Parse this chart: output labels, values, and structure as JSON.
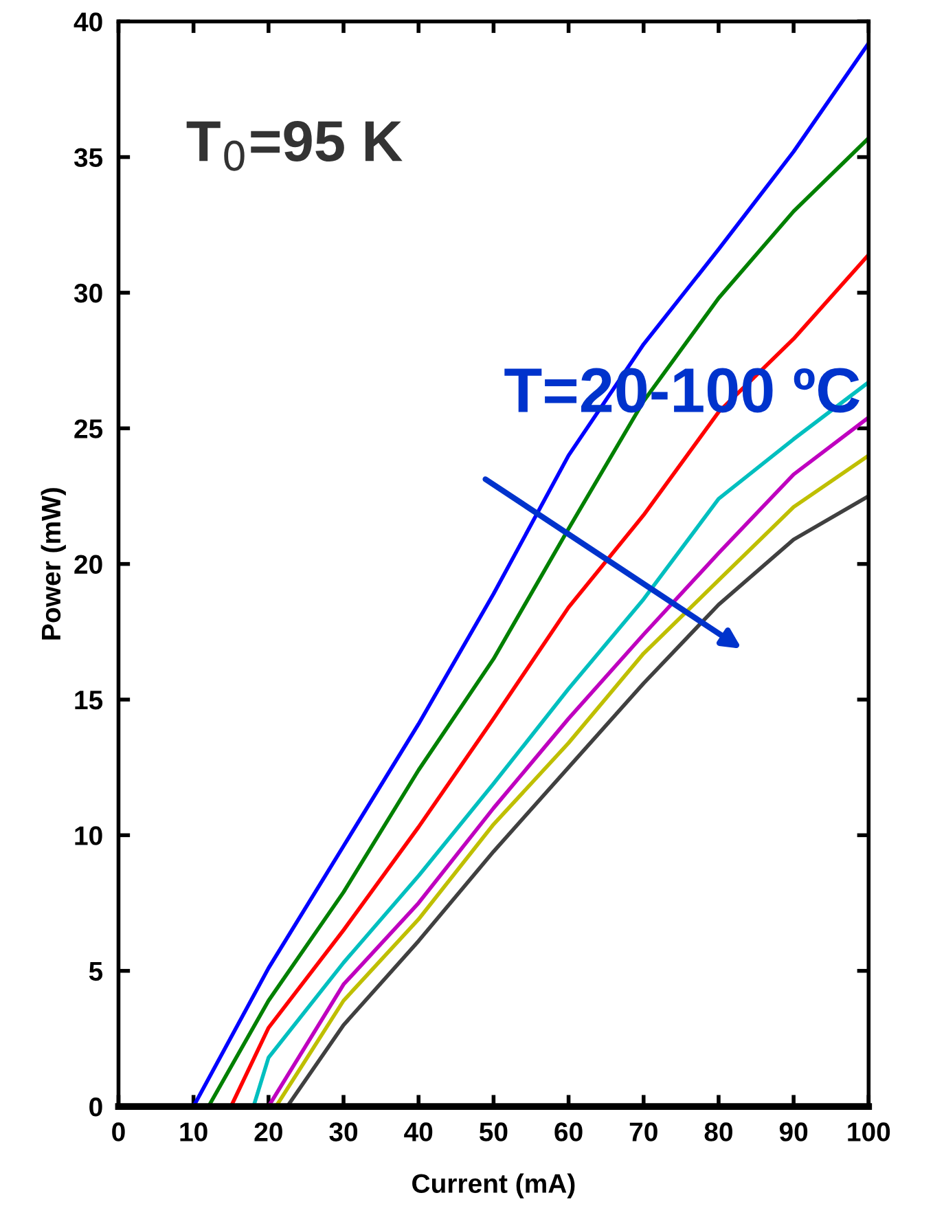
{
  "chart_data": {
    "type": "line",
    "xlabel": "Current (mA)",
    "ylabel": "Power (mW)",
    "annotations": [
      "T$_{0}$=95 K",
      "T=20-100 ºC"
    ],
    "xlim": [
      0,
      100
    ],
    "xticks": [
      0,
      10,
      20,
      30,
      40,
      50,
      60,
      70,
      80,
      90,
      100
    ],
    "ylim": [
      0,
      40
    ],
    "yticks": [
      0,
      5,
      10,
      15,
      20,
      25,
      30,
      35,
      40
    ],
    "grid": false,
    "legend": false,
    "marker": "none",
    "line_style": "solid",
    "series": [
      {
        "color": "#0000ff",
        "x": [
          0,
          10,
          20,
          30,
          40,
          50,
          60,
          70,
          80,
          90,
          100
        ],
        "values": [
          0,
          0,
          5.1,
          9.6,
          14.1,
          18.9,
          24.0,
          28.1,
          31.6,
          35.2,
          39.2
        ]
      },
      {
        "color": "#008000",
        "x": [
          0,
          12,
          20,
          30,
          40,
          50,
          60,
          70,
          80,
          90,
          100
        ],
        "values": [
          0,
          0,
          3.9,
          7.9,
          12.4,
          16.5,
          21.3,
          26.0,
          29.8,
          33.0,
          35.7
        ]
      },
      {
        "color": "#ff0000",
        "x": [
          0,
          15,
          20,
          30,
          40,
          50,
          60,
          70,
          80,
          90,
          100
        ],
        "values": [
          0,
          0,
          2.9,
          6.5,
          10.3,
          14.3,
          18.4,
          21.8,
          25.6,
          28.3,
          31.4
        ]
      },
      {
        "color": "#00bfbf",
        "x": [
          0,
          18,
          20,
          30,
          40,
          50,
          60,
          70,
          80,
          90,
          100
        ],
        "values": [
          0,
          0,
          1.8,
          5.3,
          8.5,
          11.9,
          15.4,
          18.7,
          22.4,
          24.6,
          26.7
        ]
      },
      {
        "color": "#bf00bf",
        "x": [
          0,
          20,
          30,
          40,
          50,
          60,
          70,
          80,
          90,
          100
        ],
        "values": [
          0,
          0,
          4.5,
          7.5,
          11.0,
          14.3,
          17.4,
          20.4,
          23.3,
          25.4
        ]
      },
      {
        "color": "#bfbf00",
        "x": [
          0,
          21,
          30,
          40,
          50,
          60,
          70,
          80,
          90,
          100
        ],
        "values": [
          0,
          0,
          3.9,
          6.9,
          10.4,
          13.4,
          16.7,
          19.4,
          22.1,
          24.0
        ]
      },
      {
        "color": "#404040",
        "x": [
          0,
          22.5,
          30,
          40,
          50,
          60,
          70,
          80,
          90,
          100
        ],
        "values": [
          0,
          0,
          3.0,
          6.1,
          9.4,
          12.5,
          15.6,
          18.5,
          20.9,
          22.5
        ]
      }
    ]
  }
}
